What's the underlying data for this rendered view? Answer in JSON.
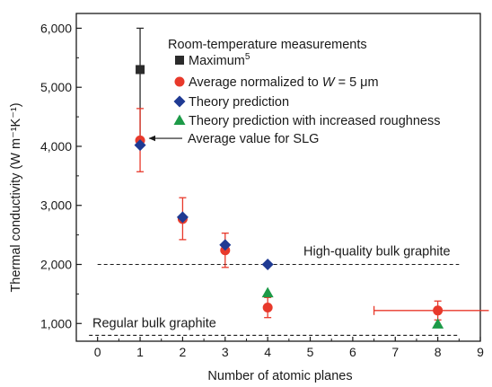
{
  "chart_data": {
    "type": "scatter",
    "xlabel": "Number of atomic planes",
    "ylabel": "Thermal conductivity (W m⁻¹K⁻¹)",
    "xlim": [
      -0.5,
      9
    ],
    "ylim": [
      700,
      6250
    ],
    "x_ticks": [
      0,
      1,
      2,
      3,
      4,
      5,
      6,
      7,
      8,
      9
    ],
    "x_tick_labels": [
      "0",
      "1",
      "2",
      "3",
      "4",
      "5",
      "6",
      "7",
      "8",
      "9"
    ],
    "y_ticks": [
      1000,
      2000,
      3000,
      4000,
      5000,
      6000
    ],
    "y_tick_labels": [
      "1,000",
      "2,000",
      "3,000",
      "4,000",
      "5,000",
      "6,000"
    ],
    "grid": false,
    "legend_title": "Room-temperature measurements",
    "legend_position": "top-right",
    "series": [
      {
        "name": "Maximum",
        "name_superscript": "5",
        "marker": "square",
        "color": "#2b2b2b",
        "points": [
          {
            "x": 1,
            "y": 5300,
            "err_low": 4000,
            "err_high": 6000
          }
        ]
      },
      {
        "name": "Average normalized to W = 5 μm",
        "name_parts": [
          "Average normalized to ",
          "W",
          " = 5 μm"
        ],
        "marker": "circle",
        "color": "#e8392b",
        "points": [
          {
            "x": 1,
            "y": 4100,
            "err_low": 3570,
            "err_high": 4640
          },
          {
            "x": 2,
            "y": 2770,
            "err_low": 2420,
            "err_high": 3130
          },
          {
            "x": 3,
            "y": 2240,
            "err_low": 1950,
            "err_high": 2530
          },
          {
            "x": 4,
            "y": 1270,
            "err_low": 1100,
            "err_high": 1440
          },
          {
            "x": 8,
            "y": 1220,
            "err_low": 1060,
            "err_high": 1380,
            "xerr_low": 6.5,
            "xerr_high": 9.2
          }
        ]
      },
      {
        "name": "Theory prediction",
        "marker": "diamond",
        "color": "#1f3a93",
        "points": [
          {
            "x": 1,
            "y": 4020
          },
          {
            "x": 2,
            "y": 2800
          },
          {
            "x": 3,
            "y": 2330
          },
          {
            "x": 4,
            "y": 2000
          }
        ]
      },
      {
        "name": "Theory prediction with increased roughness",
        "marker": "triangle",
        "color": "#1d9a48",
        "points": [
          {
            "x": 4,
            "y": 1520
          },
          {
            "x": 8,
            "y": 990
          }
        ]
      }
    ],
    "reference_lines": [
      {
        "y": 2000,
        "label": "High-quality bulk graphite",
        "style": "dashed",
        "x_from": 0,
        "x_to": 8.5
      },
      {
        "y": 800,
        "label": "Regular bulk graphite",
        "style": "dashed",
        "x_from": -0.2,
        "x_to": 8.5
      }
    ],
    "annotations": [
      {
        "text": "Average value for SLG",
        "points_to": {
          "x": 1,
          "y": 4090
        }
      }
    ]
  }
}
